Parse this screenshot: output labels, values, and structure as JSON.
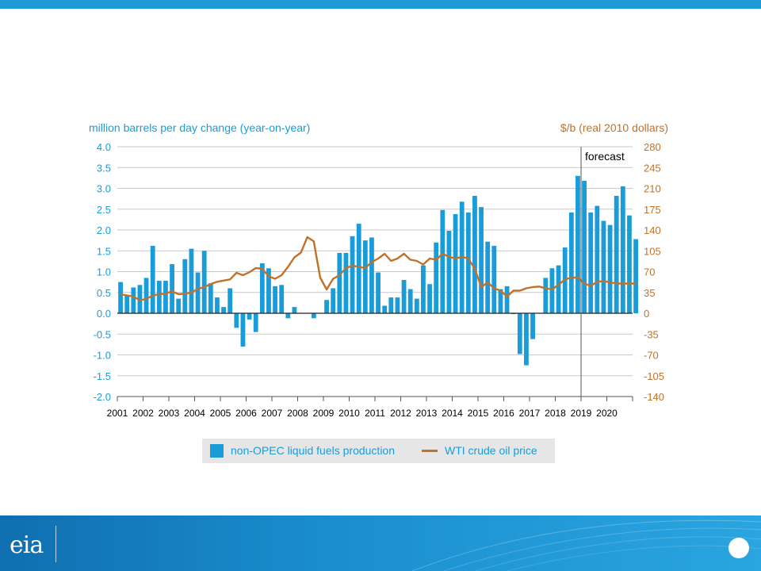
{
  "chart_data": {
    "type": "bar",
    "left_axis_label": "million barrels per day change (year-on-year)",
    "right_axis_label": "$/b (real 2010 dollars)",
    "left_ylim": [
      -2.0,
      4.0
    ],
    "right_ylim": [
      -140,
      280
    ],
    "left_ticks": [
      "4.0",
      "3.5",
      "3.0",
      "2.5",
      "2.0",
      "1.5",
      "1.0",
      "0.5",
      "0.0",
      "-0.5",
      "-1.0",
      "-1.5",
      "-2.0"
    ],
    "right_ticks": [
      "280",
      "245",
      "210",
      "175",
      "140",
      "105",
      "70",
      "35",
      "0",
      "-35",
      "-70",
      "-105",
      "-140"
    ],
    "x_labels": [
      "2001",
      "2002",
      "2003",
      "2004",
      "2005",
      "2006",
      "2007",
      "2008",
      "2009",
      "2010",
      "2011",
      "2012",
      "2013",
      "2014",
      "2015",
      "2016",
      "2017",
      "2018",
      "2019",
      "2020"
    ],
    "forecast_label": "forecast",
    "forecast_start_quarter": 72,
    "grid": true,
    "legend_position": "bottom-center",
    "series": [
      {
        "name": "non-OPEC liquid fuels production",
        "kind": "bar",
        "axis": "left",
        "color": "#1a9cd8",
        "values": [
          0.75,
          0.42,
          0.62,
          0.68,
          0.85,
          1.62,
          0.78,
          0.78,
          1.18,
          0.35,
          1.3,
          1.55,
          0.98,
          1.5,
          0.72,
          0.38,
          0.15,
          0.6,
          -0.35,
          -0.8,
          -0.15,
          -0.45,
          1.2,
          1.08,
          0.65,
          0.68,
          -0.12,
          0.15,
          0.0,
          0.0,
          -0.12,
          0.0,
          0.32,
          0.6,
          1.45,
          1.45,
          1.85,
          2.15,
          1.75,
          1.82,
          0.98,
          0.18,
          0.38,
          0.38,
          0.8,
          0.58,
          0.35,
          1.15,
          0.7,
          1.7,
          2.48,
          1.98,
          2.38,
          2.68,
          2.42,
          2.82,
          2.55,
          1.72,
          1.62,
          0.58,
          0.65,
          -0.02,
          -0.98,
          -1.25,
          -0.62,
          0.0,
          0.85,
          1.08,
          1.15,
          1.58,
          2.42,
          3.3,
          3.18,
          2.42,
          2.58,
          2.22,
          2.12,
          2.82,
          3.05,
          2.35,
          1.78
        ]
      },
      {
        "name": "WTI crude oil price",
        "kind": "line",
        "axis": "right",
        "color": "#c0712a",
        "values": [
          32,
          30,
          28,
          22,
          24,
          30,
          32,
          33,
          37,
          32,
          33,
          35,
          41,
          44,
          49,
          53,
          55,
          57,
          68,
          64,
          69,
          76,
          75,
          62,
          58,
          64,
          78,
          94,
          102,
          128,
          121,
          60,
          40,
          58,
          64,
          76,
          80,
          78,
          76,
          86,
          92,
          100,
          88,
          92,
          100,
          90,
          88,
          82,
          92,
          90,
          100,
          95,
          92,
          95,
          92,
          75,
          44,
          52,
          42,
          38,
          28,
          38,
          38,
          42,
          44,
          45,
          42,
          40,
          48,
          57,
          60,
          60,
          50,
          46,
          53,
          54,
          52,
          50,
          50,
          50,
          50
        ]
      }
    ]
  },
  "footer": {
    "logo": "eia"
  }
}
